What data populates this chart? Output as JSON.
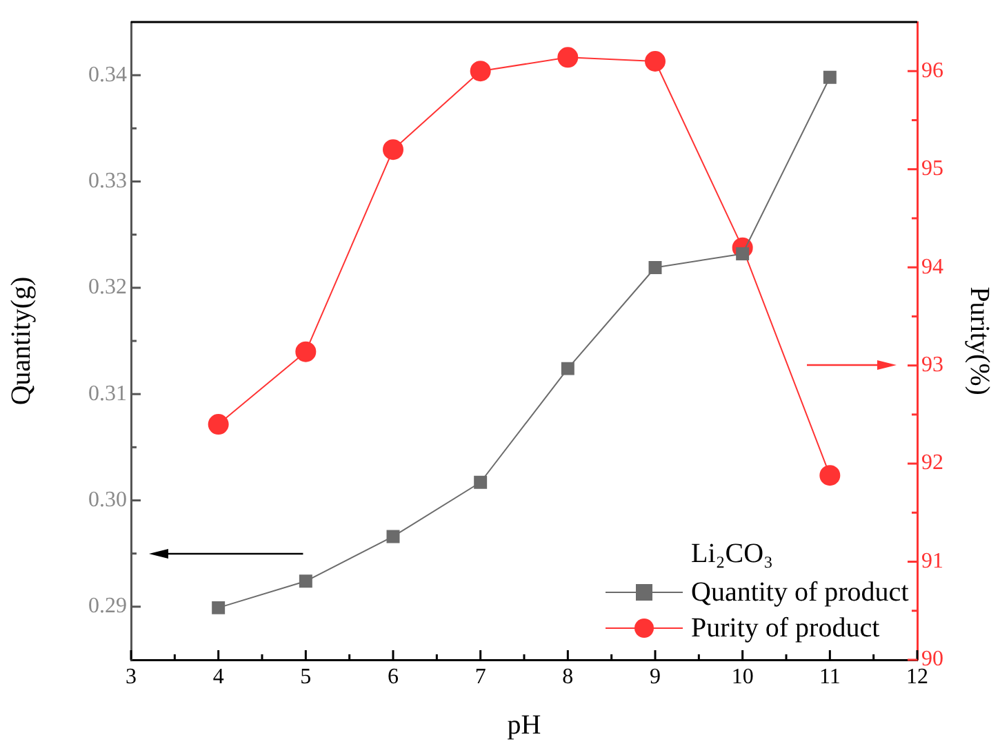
{
  "chart_data": {
    "type": "line",
    "xlabel": "pH",
    "ylabel": "Quantity(g)",
    "y2label": "Purity(%)",
    "legend_title": "Li₂CO₃",
    "legend": "bottom right",
    "grid": false,
    "x": [
      4,
      5,
      6,
      7,
      8,
      9,
      10,
      11
    ],
    "xlim": [
      3,
      12
    ],
    "xticks": [
      3,
      {
        "value": 3.5,
        "label": null
      },
      4,
      {
        "value": 4.5,
        "label": null
      },
      5,
      {
        "value": 5.5,
        "label": null
      },
      6,
      {
        "value": 6.5,
        "label": null
      },
      7,
      {
        "value": 7.5,
        "label": null
      },
      8,
      {
        "value": 8.5,
        "label": null
      },
      9,
      {
        "value": 9.5,
        "label": null
      },
      10,
      {
        "value": 10.5,
        "label": null
      },
      11,
      {
        "value": 11.5,
        "label": null
      },
      12
    ],
    "ylim": [
      0.285,
      0.345
    ],
    "yticks": [
      0.29,
      {
        "value": 0.295,
        "label": null
      },
      {
        "value": 0.3,
        "label": "0.30"
      },
      {
        "value": 0.305,
        "label": null
      },
      0.31,
      {
        "value": 0.315,
        "label": null
      },
      0.32,
      {
        "value": 0.325,
        "label": null
      },
      0.33,
      {
        "value": 0.335,
        "label": null
      },
      0.34
    ],
    "y2lim": [
      90,
      96.5
    ],
    "y2ticks": [
      90,
      {
        "value": 90.5,
        "label": null
      },
      91,
      {
        "value": 91.5,
        "label": null
      },
      92,
      {
        "value": 92.5,
        "label": null
      },
      93,
      {
        "value": 93.5,
        "label": null
      },
      94,
      {
        "value": 94.5,
        "label": null
      },
      95,
      {
        "value": 95.5,
        "label": null
      },
      96
    ],
    "series": [
      {
        "name": "Quantity of product",
        "color": "#6b6b6b",
        "marker": "square",
        "values": [
          0.2899,
          0.2924,
          0.2966,
          0.3017,
          0.3124,
          0.3219,
          0.3232,
          0.3398
        ]
      },
      {
        "name": "Purity of product",
        "color": "#ff3333",
        "marker": "circle",
        "axis": "y2",
        "values": [
          92.4,
          93.14,
          95.2,
          96.0,
          96.14,
          96.1,
          94.2,
          91.88
        ]
      }
    ]
  }
}
